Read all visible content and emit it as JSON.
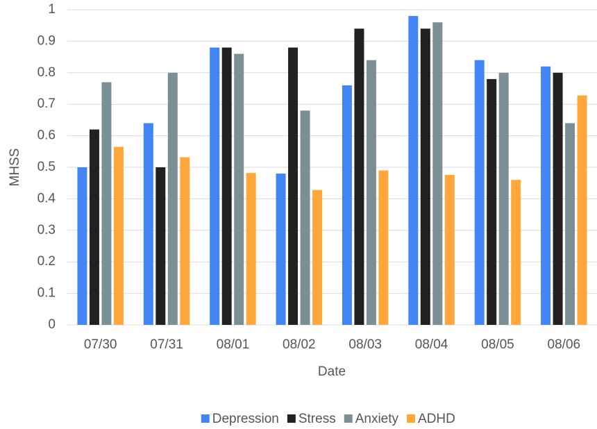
{
  "chart_data": {
    "type": "bar",
    "x_label": "Date",
    "y_label": "MHSS",
    "categories": [
      "07/30",
      "07/31",
      "08/01",
      "08/02",
      "08/03",
      "08/04",
      "08/05",
      "08/06"
    ],
    "series": [
      {
        "name": "Depression",
        "color": "#4285f4",
        "values": [
          0.5,
          0.64,
          0.88,
          0.48,
          0.76,
          0.98,
          0.84,
          0.82
        ]
      },
      {
        "name": "Stress",
        "color": "#212121",
        "values": [
          0.62,
          0.5,
          0.88,
          0.88,
          0.94,
          0.94,
          0.78,
          0.8
        ]
      },
      {
        "name": "Anxiety",
        "color": "#7b9095",
        "values": [
          0.77,
          0.8,
          0.86,
          0.68,
          0.84,
          0.96,
          0.8,
          0.64
        ]
      },
      {
        "name": "ADHD",
        "color": "#ffa73b",
        "values": [
          0.565,
          0.532,
          0.482,
          0.428,
          0.49,
          0.476,
          0.46,
          0.728
        ]
      }
    ],
    "ylim": [
      0,
      1
    ],
    "yticks": [
      0,
      0.1,
      0.2,
      0.3,
      0.4,
      0.5,
      0.6,
      0.7,
      0.8,
      0.9,
      1
    ],
    "grid": true,
    "legend": "bottom"
  }
}
